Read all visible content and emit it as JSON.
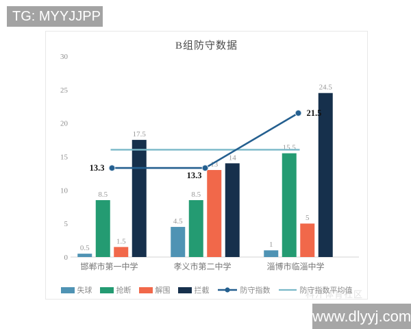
{
  "watermarks": {
    "tg_banner": "TG: MYYJJPP",
    "faint": "科汗体育社区",
    "site": "www.dlyyj.com"
  },
  "chart_data": {
    "type": "bar",
    "title": "B组防守数据",
    "categories": [
      "邯郸市第一中学",
      "孝义市第二中学",
      "淄博市临淄中学"
    ],
    "series": [
      {
        "name": "失球",
        "type": "bar",
        "color": "#4f93b4",
        "values": [
          0.5,
          4.5,
          1
        ],
        "labels": [
          "0.5",
          "4.5",
          "1"
        ]
      },
      {
        "name": "抢断",
        "type": "bar",
        "color": "#249b72",
        "values": [
          8.5,
          8.5,
          15.5
        ],
        "labels": [
          "8.5",
          "8.5",
          "15.5"
        ]
      },
      {
        "name": "解围",
        "type": "bar",
        "color": "#f1684a",
        "values": [
          1.5,
          13,
          5
        ],
        "labels": [
          "1.5",
          "13",
          "5"
        ]
      },
      {
        "name": "拦截",
        "type": "bar",
        "color": "#16304c",
        "values": [
          17.5,
          14,
          24.5
        ],
        "labels": [
          "17.5",
          "14",
          "24.5"
        ]
      }
    ],
    "line_series": {
      "name": "防守指数",
      "type": "line",
      "color": "#245f8f",
      "values": [
        13.3,
        13.3,
        21.5
      ],
      "labels": [
        "13.3",
        "13.3",
        "21.5"
      ],
      "label_positions": [
        "left",
        "below",
        "right"
      ]
    },
    "avg_line": {
      "name": "防守指数平均值",
      "color": "#79b8c8",
      "value": 16.03
    },
    "ylim": [
      0,
      30
    ],
    "yticks": [
      "0",
      "5",
      "10",
      "15",
      "20",
      "25",
      "30"
    ],
    "grid": "off",
    "legend_position": "bottom"
  }
}
